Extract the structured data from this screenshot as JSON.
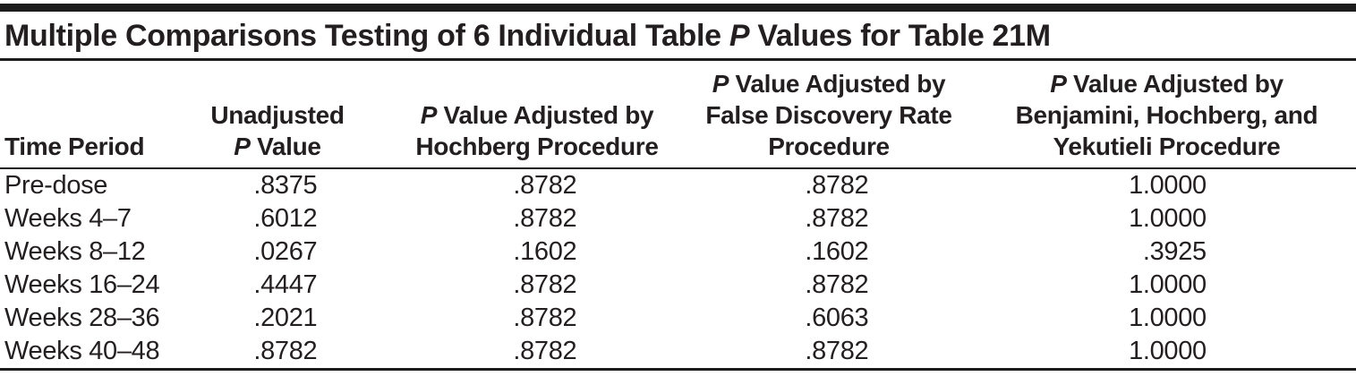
{
  "page": {
    "background": "#ffffff"
  },
  "table": {
    "title": "Multiple Comparisons Testing of 6 Individual Table P Values for Table 21M",
    "text_color": "#231f20",
    "rule_color": "#1c1c1c",
    "columns": [
      {
        "id": "time-period",
        "lines": [
          "Time Period"
        ]
      },
      {
        "id": "unadjusted",
        "lines": [
          "Unadjusted",
          "P Value"
        ]
      },
      {
        "id": "hochberg",
        "lines": [
          "P Value Adjusted by",
          "Hochberg Procedure"
        ]
      },
      {
        "id": "false-discovery-rate",
        "lines": [
          "P Value Adjusted by",
          "False Discovery Rate",
          "Procedure"
        ]
      },
      {
        "id": "benjamini-hochberg-yekutieli",
        "lines": [
          "P Value Adjusted by",
          "Benjamini, Hochberg, and",
          "Yekutieli Procedure"
        ]
      }
    ],
    "rows": [
      {
        "time_period": "Pre-dose",
        "values": [
          ".8375",
          ".8782",
          ".8782",
          "1.0000"
        ]
      },
      {
        "time_period": "Weeks 4–7",
        "values": [
          ".6012",
          ".8782",
          ".8782",
          "1.0000"
        ]
      },
      {
        "time_period": "Weeks 8–12",
        "values": [
          ".0267",
          ".1602",
          ".1602",
          ".3925"
        ]
      },
      {
        "time_period": "Weeks 16–24",
        "values": [
          ".4447",
          ".8782",
          ".8782",
          "1.0000"
        ]
      },
      {
        "time_period": "Weeks 28–36",
        "values": [
          ".2021",
          ".8782",
          ".6063",
          "1.0000"
        ]
      },
      {
        "time_period": "Weeks 40–48",
        "values": [
          ".8782",
          ".8782",
          ".8782",
          "1.0000"
        ]
      }
    ]
  }
}
